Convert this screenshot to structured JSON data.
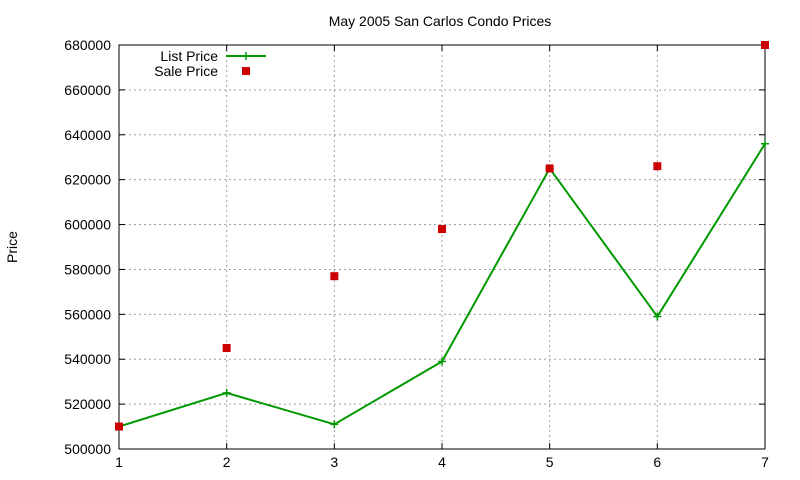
{
  "chart_data": {
    "type": "line",
    "title": "May 2005 San Carlos Condo Prices",
    "xlabel": "",
    "ylabel": "Price",
    "x": [
      1,
      2,
      3,
      4,
      5,
      6,
      7
    ],
    "xlim": [
      1,
      7
    ],
    "ylim": [
      500000,
      680000
    ],
    "yticks": [
      500000,
      520000,
      540000,
      560000,
      580000,
      600000,
      620000,
      640000,
      660000,
      680000
    ],
    "xticks": [
      1,
      2,
      3,
      4,
      5,
      6,
      7
    ],
    "grid": true,
    "legend_position": "top-left",
    "series": [
      {
        "name": "List Price",
        "style": "linespoints",
        "marker": "plus",
        "color": "#009900",
        "values": [
          510000,
          525000,
          511000,
          539000,
          625000,
          559000,
          636000
        ]
      },
      {
        "name": "Sale Price",
        "style": "points",
        "marker": "square",
        "color": "#cc0000",
        "values": [
          510000,
          545000,
          577000,
          598000,
          625000,
          626000,
          680000
        ]
      }
    ]
  }
}
